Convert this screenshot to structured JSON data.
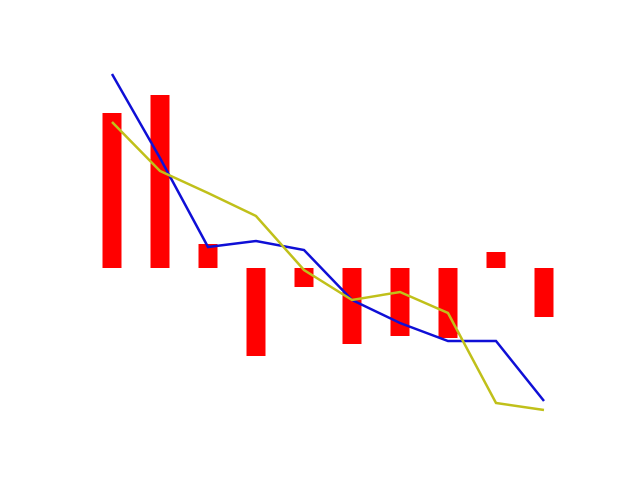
{
  "chart_data": {
    "type": "bar",
    "categories": [
      null,
      null,
      null,
      null,
      null,
      null,
      null,
      null,
      null,
      null
    ],
    "ylim": [
      -16.4,
      22
    ],
    "series": [
      {
        "type": "bar",
        "color": "#ff0000",
        "values": [
          15.5,
          17.3,
          2.4,
          -8.8,
          -1.9,
          -7.6,
          -6.8,
          -7.0,
          1.6,
          -4.9
        ]
      },
      {
        "type": "line",
        "color": "#0f0fd6",
        "values": [
          19.4,
          11.0,
          2.1,
          2.7,
          1.8,
          -3.2,
          -5.5,
          -7.3,
          -7.3,
          -13.3
        ]
      },
      {
        "type": "line",
        "color": "#c0c01a",
        "values": [
          14.6,
          9.7,
          7.5,
          5.2,
          -0.2,
          -3.2,
          -2.4,
          -4.5,
          -13.5,
          -14.2
        ]
      }
    ]
  }
}
